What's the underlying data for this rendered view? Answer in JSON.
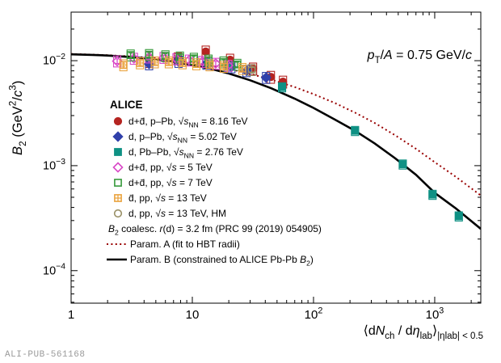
{
  "watermark": "ALI-PUB-561168",
  "chart_data": {
    "type": "scatter",
    "x_scale": "log",
    "y_scale": "log",
    "xlim": [
      1,
      2400
    ],
    "ylim": [
      4.9e-05,
      0.029
    ],
    "grid": false,
    "annotation": "*p*_{T}/*A* = 0.75 GeV/*c*",
    "xlabel_rich": "⟨d*N*_{ch} / d*η*_{lab}⟩_{|ηlab| < 0.5}",
    "ylabel_rich": "*B*_{2} (GeV^{2}/*c*^{3})",
    "x_ticks": [
      {
        "v": 1,
        "label": "1"
      },
      {
        "v": 10,
        "label": "10"
      },
      {
        "v": 100,
        "label": "10^{2}"
      },
      {
        "v": 1000,
        "label": "10^{3}"
      }
    ],
    "y_ticks": [
      {
        "v": 0.01,
        "label": "10^{−2}"
      },
      {
        "v": 0.001,
        "label": "10^{−3}"
      },
      {
        "v": 0.0001,
        "label": "10^{−4}"
      }
    ],
    "legend_header": "ALICE",
    "legend_note": "*B*_{2} coalesc. *r*(d) = 3.2 fm (PRC 99 (2019) 054905)",
    "series": [
      {
        "key": "d-pPb-816",
        "label": "d+d̄, p–Pb, √*s*_{NN} = 8.16 TeV",
        "marker": "circle",
        "filled": true,
        "color": "#b52421",
        "stat": 0.06,
        "syst": 0.13,
        "points": [
          [
            4.4,
            0.0099
          ],
          [
            7.6,
            0.0105
          ],
          [
            12.9,
            0.0122
          ],
          [
            20.5,
            0.0102
          ],
          [
            31.7,
            0.0084
          ],
          [
            44.5,
            0.007
          ],
          [
            56.0,
            0.0063
          ]
        ]
      },
      {
        "key": "d-pPb-502",
        "label": "d, p–Pb, √*s*_{NN} = 5.02 TeV",
        "marker": "diamond",
        "filled": true,
        "color": "#3040aa",
        "stat": 0.06,
        "syst": 0.12,
        "points": [
          [
            4.4,
            0.0093
          ],
          [
            7.7,
            0.0098
          ],
          [
            13.1,
            0.0094
          ],
          [
            21.0,
            0.0087
          ],
          [
            28.0,
            0.008
          ],
          [
            40.6,
            0.0069
          ]
        ]
      },
      {
        "key": "d-PbPb-276",
        "label": "d, Pb–Pb, √*s*_{NN} = 2.76 TeV",
        "marker": "square",
        "filled": true,
        "color": "#0e9184",
        "stat": 0.05,
        "syst": 0.1,
        "points": [
          [
            19.5,
            0.0088
          ],
          [
            55.0,
            0.0056
          ],
          [
            220.0,
            0.00215
          ],
          [
            545.0,
            0.00103
          ],
          [
            960.0,
            0.00053
          ],
          [
            1580.0,
            0.00033
          ]
        ]
      },
      {
        "key": "d-pp-5",
        "label": "d+d̄, pp, √*s* = 5 TeV",
        "marker": "diamond",
        "filled": false,
        "color": "#d949c7",
        "stat": 0.05,
        "syst": 0.12,
        "points": [
          [
            2.4,
            0.0099
          ],
          [
            3.3,
            0.0105
          ],
          [
            4.4,
            0.0108
          ],
          [
            5.8,
            0.0107
          ],
          [
            7.4,
            0.0104
          ],
          [
            9.4,
            0.0101
          ],
          [
            12.1,
            0.0098
          ],
          [
            15.6,
            0.0094
          ],
          [
            19.8,
            0.009
          ]
        ]
      },
      {
        "key": "d-pp-7",
        "label": "d+d̄, pp, √*s* = 7 TeV",
        "marker": "square",
        "filled": false,
        "color": "#379a3c",
        "stat": 0.05,
        "syst": 0.12,
        "points": [
          [
            3.1,
            0.0113
          ],
          [
            4.4,
            0.0114
          ],
          [
            6.0,
            0.0111
          ],
          [
            7.9,
            0.0108
          ],
          [
            10.3,
            0.0105
          ],
          [
            13.6,
            0.0101
          ],
          [
            18.1,
            0.0097
          ],
          [
            23.5,
            0.0092
          ]
        ]
      },
      {
        "key": "dbar-pp-13",
        "label": "d̄, pp, √*s* = 13 TeV",
        "marker": "square-cross",
        "filled": false,
        "color": "#eaa440",
        "stat": 0.04,
        "syst": 0.12,
        "points": [
          [
            2.7,
            0.0091
          ],
          [
            3.7,
            0.0095
          ],
          [
            4.9,
            0.0097
          ],
          [
            6.4,
            0.0097
          ],
          [
            8.3,
            0.0095
          ],
          [
            10.8,
            0.0093
          ],
          [
            13.9,
            0.0091
          ],
          [
            18.2,
            0.0088
          ],
          [
            25.9,
            0.0084
          ]
        ]
      },
      {
        "key": "d-pp-13-hm",
        "label": "d, pp, √*s* = 13 TeV, HM",
        "marker": "circle",
        "filled": false,
        "color": "#999066",
        "stat": 0.05,
        "syst": 0.12,
        "points": [
          [
            30.9,
            0.0082
          ]
        ]
      }
    ],
    "curves": [
      {
        "key": "param-a",
        "label": "Param. A (fit to HBT radii)",
        "style": "dotted",
        "color": "#990000",
        "points": [
          [
            1,
            0.0116
          ],
          [
            2,
            0.0113
          ],
          [
            3,
            0.011
          ],
          [
            5,
            0.01055
          ],
          [
            7,
            0.01015
          ],
          [
            10,
            0.0096
          ],
          [
            14,
            0.009
          ],
          [
            20,
            0.00835
          ],
          [
            30,
            0.0075
          ],
          [
            45,
            0.0066
          ],
          [
            70,
            0.0056
          ],
          [
            100,
            0.0048
          ],
          [
            150,
            0.00395
          ],
          [
            220,
            0.0032
          ],
          [
            320,
            0.00255
          ],
          [
            470,
            0.00195
          ],
          [
            700,
            0.00145
          ],
          [
            1000,
            0.00108
          ],
          [
            1500,
            0.00078
          ],
          [
            2400,
            0.00052
          ]
        ]
      },
      {
        "key": "param-b",
        "label": "Param. B (constrained to ALICE Pb-Pb *B*_{2})",
        "style": "solid",
        "color": "#000000",
        "points": [
          [
            1,
            0.0115
          ],
          [
            1.5,
            0.01135
          ],
          [
            2,
            0.0112
          ],
          [
            3,
            0.01085
          ],
          [
            4,
            0.01055
          ],
          [
            5,
            0.0103
          ],
          [
            7,
            0.00975
          ],
          [
            10,
            0.0091
          ],
          [
            14,
            0.0084
          ],
          [
            20,
            0.00755
          ],
          [
            30,
            0.0065
          ],
          [
            45,
            0.00545
          ],
          [
            70,
            0.00435
          ],
          [
            100,
            0.00355
          ],
          [
            150,
            0.00275
          ],
          [
            220,
            0.00215
          ],
          [
            320,
            0.00163
          ],
          [
            470,
            0.00118
          ],
          [
            700,
            0.00082
          ],
          [
            1000,
            0.00055
          ],
          [
            1500,
            0.00039
          ],
          [
            2400,
            0.00025
          ]
        ]
      }
    ]
  }
}
